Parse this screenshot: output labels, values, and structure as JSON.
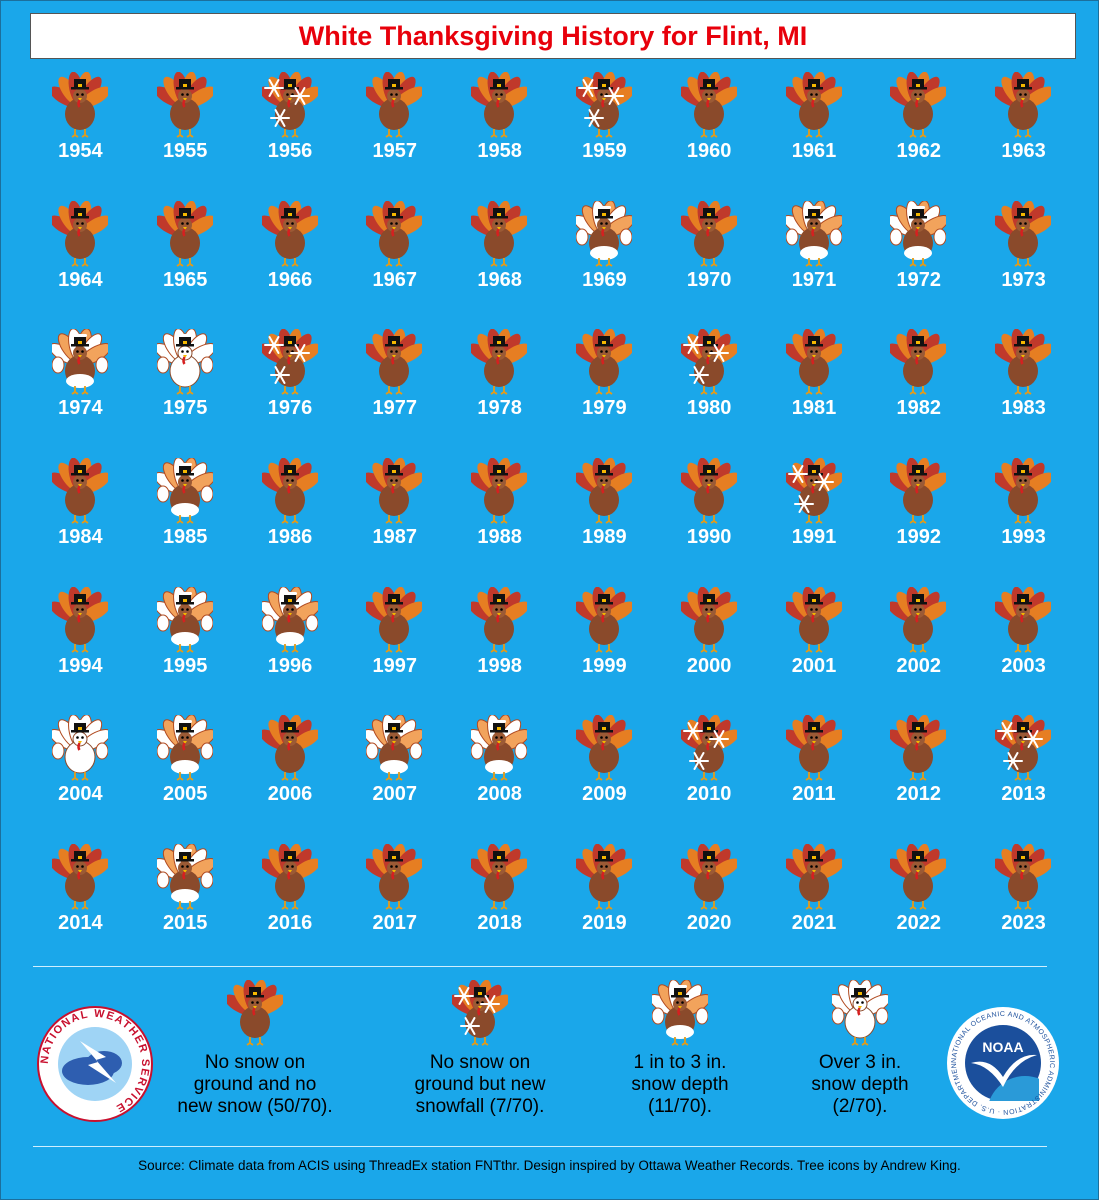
{
  "title": "White Thanksgiving History for Flint, MI",
  "colors": {
    "background": "#1aa7ea",
    "title_text": "#e8000b",
    "turkey_body": "#8a4a2b",
    "feather_red": "#c0392b",
    "feather_orange": "#e67e22",
    "snow": "#ffffff"
  },
  "categories": {
    "none": "turkey-icon",
    "snowfall": "turkey-snowflake-icon",
    "depth_1_3": "turkey-snowy-icon",
    "depth_over_3": "turkey-snow-covered-icon"
  },
  "years": [
    {
      "year": "1954",
      "cat": "none"
    },
    {
      "year": "1955",
      "cat": "none"
    },
    {
      "year": "1956",
      "cat": "snowfall"
    },
    {
      "year": "1957",
      "cat": "none"
    },
    {
      "year": "1958",
      "cat": "none"
    },
    {
      "year": "1959",
      "cat": "snowfall"
    },
    {
      "year": "1960",
      "cat": "none"
    },
    {
      "year": "1961",
      "cat": "none"
    },
    {
      "year": "1962",
      "cat": "none"
    },
    {
      "year": "1963",
      "cat": "none"
    },
    {
      "year": "1964",
      "cat": "none"
    },
    {
      "year": "1965",
      "cat": "none"
    },
    {
      "year": "1966",
      "cat": "none"
    },
    {
      "year": "1967",
      "cat": "none"
    },
    {
      "year": "1968",
      "cat": "none"
    },
    {
      "year": "1969",
      "cat": "depth_1_3"
    },
    {
      "year": "1970",
      "cat": "none"
    },
    {
      "year": "1971",
      "cat": "depth_1_3"
    },
    {
      "year": "1972",
      "cat": "depth_1_3"
    },
    {
      "year": "1973",
      "cat": "none"
    },
    {
      "year": "1974",
      "cat": "depth_1_3"
    },
    {
      "year": "1975",
      "cat": "depth_over_3"
    },
    {
      "year": "1976",
      "cat": "snowfall"
    },
    {
      "year": "1977",
      "cat": "none"
    },
    {
      "year": "1978",
      "cat": "none"
    },
    {
      "year": "1979",
      "cat": "none"
    },
    {
      "year": "1980",
      "cat": "snowfall"
    },
    {
      "year": "1981",
      "cat": "none"
    },
    {
      "year": "1982",
      "cat": "none"
    },
    {
      "year": "1983",
      "cat": "none"
    },
    {
      "year": "1984",
      "cat": "none"
    },
    {
      "year": "1985",
      "cat": "depth_1_3"
    },
    {
      "year": "1986",
      "cat": "none"
    },
    {
      "year": "1987",
      "cat": "none"
    },
    {
      "year": "1988",
      "cat": "none"
    },
    {
      "year": "1989",
      "cat": "none"
    },
    {
      "year": "1990",
      "cat": "none"
    },
    {
      "year": "1991",
      "cat": "snowfall"
    },
    {
      "year": "1992",
      "cat": "none"
    },
    {
      "year": "1993",
      "cat": "none"
    },
    {
      "year": "1994",
      "cat": "none"
    },
    {
      "year": "1995",
      "cat": "depth_1_3"
    },
    {
      "year": "1996",
      "cat": "depth_1_3"
    },
    {
      "year": "1997",
      "cat": "none"
    },
    {
      "year": "1998",
      "cat": "none"
    },
    {
      "year": "1999",
      "cat": "none"
    },
    {
      "year": "2000",
      "cat": "none"
    },
    {
      "year": "2001",
      "cat": "none"
    },
    {
      "year": "2002",
      "cat": "none"
    },
    {
      "year": "2003",
      "cat": "none"
    },
    {
      "year": "2004",
      "cat": "depth_over_3"
    },
    {
      "year": "2005",
      "cat": "depth_1_3"
    },
    {
      "year": "2006",
      "cat": "none"
    },
    {
      "year": "2007",
      "cat": "depth_1_3"
    },
    {
      "year": "2008",
      "cat": "depth_1_3"
    },
    {
      "year": "2009",
      "cat": "none"
    },
    {
      "year": "2010",
      "cat": "snowfall"
    },
    {
      "year": "2011",
      "cat": "none"
    },
    {
      "year": "2012",
      "cat": "none"
    },
    {
      "year": "2013",
      "cat": "snowfall"
    },
    {
      "year": "2014",
      "cat": "none"
    },
    {
      "year": "2015",
      "cat": "depth_1_3"
    },
    {
      "year": "2016",
      "cat": "none"
    },
    {
      "year": "2017",
      "cat": "none"
    },
    {
      "year": "2018",
      "cat": "none"
    },
    {
      "year": "2019",
      "cat": "none"
    },
    {
      "year": "2020",
      "cat": "none"
    },
    {
      "year": "2021",
      "cat": "none"
    },
    {
      "year": "2022",
      "cat": "none"
    },
    {
      "year": "2023",
      "cat": "none"
    }
  ],
  "legend": {
    "none": {
      "line1": "No snow on",
      "line2": "ground and no",
      "line3": "new snow (50/70)."
    },
    "snowfall": {
      "line1": "No snow on",
      "line2": "ground but new",
      "line3": "snowfall (7/70)."
    },
    "depth_1_3": {
      "line1": "1 in to 3 in.",
      "line2": "snow depth",
      "line3": "(11/70)."
    },
    "depth_over_3": {
      "line1": "Over 3 in.",
      "line2": "snow depth",
      "line3": "(2/70)."
    }
  },
  "logos": {
    "nws": {
      "name": "nws-logo",
      "text": "NATIONAL WEATHER SERVICE"
    },
    "noaa": {
      "name": "noaa-logo",
      "text": "NOAA",
      "ring": "NATIONAL OCEANIC AND ATMOSPHERIC ADMINISTRATION · U.S. DEPARTMENT OF COMMERCE"
    }
  },
  "source": "Source: Climate data from ACIS using ThreadEx station FNTthr. Design inspired by Ottawa Weather Records. Tree icons by Andrew King."
}
